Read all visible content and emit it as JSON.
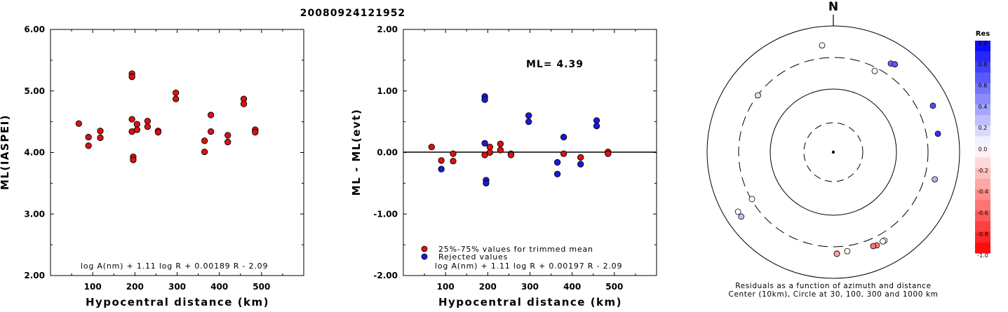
{
  "title": "20080924121952",
  "left_chart": {
    "ylabel": "ML(IASPEI)",
    "xlabel": "Hypocentral distance (km)",
    "formula": "log A(nm) + 1.11 log R + 0.00189 R - 2.09",
    "yticks": [
      "6.00",
      "5.00",
      "4.00",
      "3.00",
      "2.00"
    ],
    "xticks": [
      "100",
      "200",
      "300",
      "400",
      "500"
    ]
  },
  "mid_chart": {
    "ylabel": "ML - ML(evt)",
    "xlabel": "Hypocentral distance (km)",
    "ml_label": "ML= 4.39",
    "formula": "log A(nm) + 1.11 log R + 0.00197 R - 2.09",
    "legend": [
      "25%-75% values for trimmed mean",
      "Rejected values"
    ],
    "yticks": [
      "2.00",
      "1.00",
      "0.00",
      "-1.00",
      "-2.00"
    ],
    "xticks": [
      "100",
      "200",
      "300",
      "400",
      "500"
    ]
  },
  "polar": {
    "north_label": "N",
    "caption1": "Residuals as a function of azimuth and distance",
    "caption2": "Center (10km), Circle at 30, 100, 300 and 1000 km"
  },
  "colorbar": {
    "title": "Res",
    "labels": [
      "1.0",
      "0.8",
      "0.6",
      "0.4",
      "0.2",
      "0.0",
      "-0.2",
      "-0.4",
      "-0.6",
      "-0.8",
      "-1.0"
    ]
  },
  "colors": {
    "used": "#dd1111",
    "rejected": "#1a1adb",
    "zero_line": "#000000"
  },
  "chart_data": [
    {
      "type": "scatter",
      "ylim": [
        2.0,
        6.0
      ],
      "xlim": [
        0,
        600
      ],
      "points": [
        [
          67,
          4.47
        ],
        [
          90,
          4.25
        ],
        [
          90,
          4.11
        ],
        [
          118,
          4.35
        ],
        [
          118,
          4.24
        ],
        [
          193,
          5.28
        ],
        [
          193,
          5.23
        ],
        [
          193,
          4.54
        ],
        [
          193,
          4.34
        ],
        [
          196,
          3.93
        ],
        [
          196,
          3.88
        ],
        [
          205,
          4.46
        ],
        [
          205,
          4.37
        ],
        [
          230,
          4.51
        ],
        [
          230,
          4.42
        ],
        [
          255,
          4.35
        ],
        [
          255,
          4.33
        ],
        [
          297,
          4.97
        ],
        [
          297,
          4.87
        ],
        [
          365,
          4.19
        ],
        [
          365,
          4.01
        ],
        [
          380,
          4.61
        ],
        [
          380,
          4.34
        ],
        [
          420,
          4.28
        ],
        [
          420,
          4.17
        ],
        [
          458,
          4.87
        ],
        [
          458,
          4.79
        ],
        [
          485,
          4.37
        ],
        [
          485,
          4.33
        ]
      ]
    },
    {
      "type": "scatter",
      "ylim": [
        -2.0,
        2.0
      ],
      "xlim": [
        0,
        600
      ],
      "zero_line": 0,
      "used": [
        [
          67,
          0.09
        ],
        [
          90,
          -0.13
        ],
        [
          118,
          -0.02
        ],
        [
          118,
          -0.14
        ],
        [
          193,
          -0.04
        ],
        [
          205,
          0.09
        ],
        [
          205,
          0.0
        ],
        [
          230,
          0.14
        ],
        [
          230,
          0.04
        ],
        [
          255,
          -0.02
        ],
        [
          255,
          -0.04
        ],
        [
          380,
          -0.02
        ],
        [
          420,
          -0.08
        ],
        [
          485,
          0.01
        ],
        [
          485,
          -0.02
        ]
      ],
      "rejected": [
        [
          90,
          -0.27
        ],
        [
          193,
          0.91
        ],
        [
          193,
          0.86
        ],
        [
          193,
          0.15
        ],
        [
          196,
          -0.45
        ],
        [
          196,
          -0.5
        ],
        [
          297,
          0.6
        ],
        [
          297,
          0.5
        ],
        [
          365,
          -0.16
        ],
        [
          365,
          -0.35
        ],
        [
          380,
          0.25
        ],
        [
          420,
          -0.19
        ],
        [
          458,
          0.52
        ],
        [
          458,
          0.43
        ]
      ]
    },
    {
      "type": "polar-scatter",
      "radii_km": [
        10,
        30,
        100,
        300,
        1000
      ],
      "points": [
        [
          354,
          487,
          -0.05
        ],
        [
          33,
          456,
          0.6
        ],
        [
          35,
          485,
          0.65
        ],
        [
          65,
          535,
          0.7
        ],
        [
          80,
          465,
          0.8
        ],
        [
          27,
          265,
          0.0
        ],
        [
          -53,
          297,
          -0.15
        ],
        [
          105,
          445,
          0.3
        ],
        [
          -120,
          292,
          0.0
        ],
        [
          -125,
          590,
          0.25
        ],
        [
          -122,
          589,
          0.0
        ],
        [
          155,
          409,
          -0.5
        ],
        [
          157,
          398,
          -0.55
        ],
        [
          172,
          368,
          0.0
        ],
        [
          178,
          391,
          -0.4
        ],
        [
          178,
          393,
          -0.35
        ],
        [
          150,
          399,
          0.0
        ],
        [
          151,
          397,
          0.0
        ]
      ]
    }
  ]
}
